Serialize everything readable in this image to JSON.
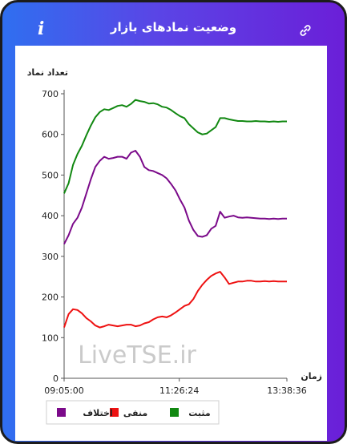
{
  "header": {
    "title": "وضعیت نمادهای بازار",
    "info_icon": "info-icon",
    "link_icon": "link-icon"
  },
  "chart_data": {
    "type": "line",
    "ylabel": "تعداد نماد",
    "xlabel": "زمان",
    "ylim": [
      0,
      700
    ],
    "yticks": [
      0,
      100,
      200,
      300,
      400,
      500,
      600,
      700
    ],
    "x_tick_labels": [
      "09:05:00",
      "11:26:24",
      "13:38:36"
    ],
    "x_range": [
      "09:05:00",
      "13:38:36"
    ],
    "watermark": "LiveTSE.ir",
    "legend_position": "bottom",
    "x": [
      "09:05:00",
      "09:10:28",
      "09:15:56",
      "09:21:25",
      "09:26:53",
      "09:32:22",
      "09:37:50",
      "09:43:19",
      "09:48:47",
      "09:54:16",
      "09:59:44",
      "10:05:13",
      "10:10:41",
      "10:16:10",
      "10:21:38",
      "10:27:07",
      "10:32:35",
      "10:38:04",
      "10:43:32",
      "10:49:01",
      "10:54:29",
      "10:59:58",
      "11:05:26",
      "11:10:55",
      "11:16:23",
      "11:21:52",
      "11:27:20",
      "11:32:49",
      "11:38:17",
      "11:43:46",
      "11:49:14",
      "11:54:43",
      "12:00:11",
      "12:05:40",
      "12:11:08",
      "12:16:37",
      "12:22:05",
      "12:27:34",
      "12:33:02",
      "12:38:31",
      "12:43:59",
      "12:49:28",
      "12:54:56",
      "13:00:25",
      "13:05:53",
      "13:11:22",
      "13:16:50",
      "13:22:19",
      "13:27:47",
      "13:33:16",
      "13:38:36"
    ],
    "series": [
      {
        "name": "مثبت",
        "color": "#118811",
        "values": [
          455,
          480,
          525,
          552,
          572,
          598,
          622,
          642,
          655,
          662,
          660,
          665,
          670,
          672,
          668,
          675,
          685,
          682,
          680,
          676,
          677,
          674,
          668,
          666,
          660,
          652,
          645,
          640,
          625,
          615,
          605,
          600,
          602,
          610,
          618,
          640,
          640,
          637,
          635,
          633,
          633,
          632,
          632,
          633,
          632,
          632,
          631,
          632,
          631,
          632,
          632
        ]
      },
      {
        "name": "منفی",
        "color": "#ee1111",
        "values": [
          125,
          158,
          170,
          168,
          160,
          148,
          140,
          130,
          125,
          128,
          132,
          130,
          128,
          130,
          132,
          132,
          128,
          130,
          135,
          138,
          145,
          150,
          152,
          150,
          155,
          162,
          170,
          178,
          182,
          195,
          215,
          230,
          242,
          252,
          258,
          262,
          248,
          232,
          235,
          238,
          238,
          240,
          240,
          238,
          238,
          239,
          238,
          239,
          238,
          238,
          238
        ]
      },
      {
        "name": "اختلاف",
        "color": "#7b0a8a",
        "values": [
          330,
          352,
          380,
          395,
          420,
          455,
          490,
          520,
          535,
          545,
          540,
          542,
          545,
          545,
          540,
          555,
          560,
          545,
          520,
          512,
          510,
          505,
          500,
          492,
          478,
          462,
          440,
          420,
          388,
          365,
          350,
          348,
          352,
          368,
          375,
          410,
          395,
          398,
          400,
          396,
          395,
          396,
          395,
          394,
          393,
          393,
          392,
          393,
          392,
          393,
          393
        ]
      }
    ]
  }
}
